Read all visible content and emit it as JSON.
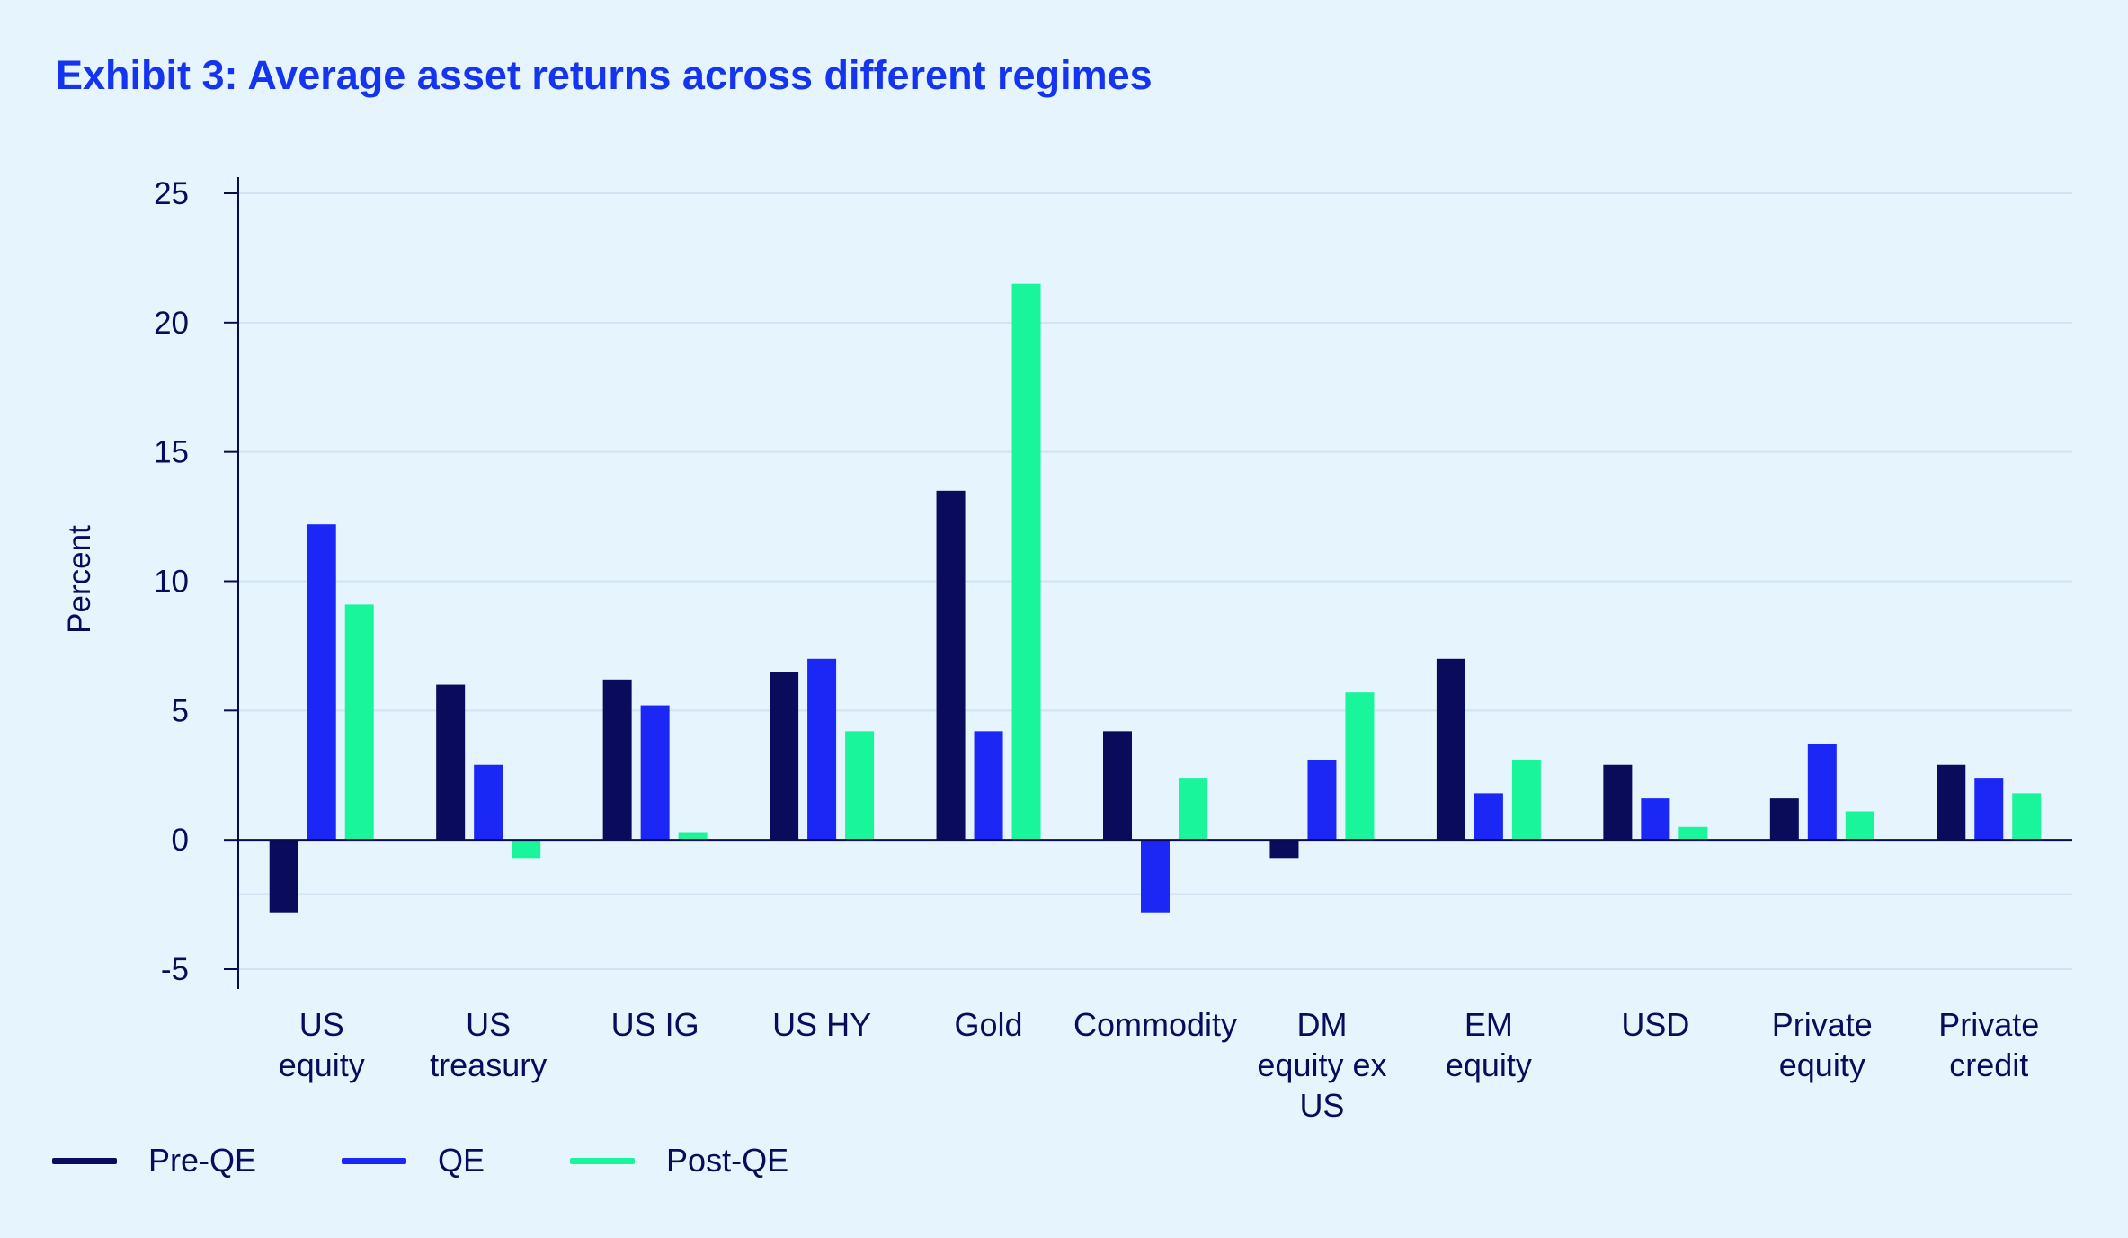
{
  "title": "Exhibit 3: Average asset returns across different regimes",
  "colors": {
    "background": "#e6f4fd",
    "title": "#1434f0",
    "text": "#0b0b5c",
    "grid": "#cfe3f2",
    "axis": "#0b0b4a"
  },
  "legend": [
    {
      "label": "Pre-QE",
      "color": "#0b0b5c"
    },
    {
      "label": "QE",
      "color": "#1a27f5"
    },
    {
      "label": "Post-QE",
      "color": "#19f59a"
    }
  ],
  "chart_data": {
    "type": "bar",
    "title": "Exhibit 3: Average asset returns across different regimes",
    "ylabel": "Percent",
    "xlabel": "",
    "ylim": [
      -5,
      25
    ],
    "yticks": [
      -5,
      0,
      5,
      10,
      15,
      20,
      25
    ],
    "grid": true,
    "legend_position": "bottom-left",
    "categories": [
      [
        "US",
        "equity"
      ],
      [
        "US",
        "treasury"
      ],
      [
        "US IG"
      ],
      [
        "US HY"
      ],
      [
        "Gold"
      ],
      [
        "Commodity"
      ],
      [
        "DM",
        "equity ex",
        "US"
      ],
      [
        "EM",
        "equity"
      ],
      [
        "USD"
      ],
      [
        "Private",
        "equity"
      ],
      [
        "Private",
        "credit"
      ]
    ],
    "series": [
      {
        "name": "Pre-QE",
        "color": "#0b0b5c",
        "values": [
          -2.8,
          6.0,
          6.2,
          6.5,
          13.5,
          4.2,
          -0.7,
          7.0,
          2.9,
          1.6,
          2.9
        ]
      },
      {
        "name": "QE",
        "color": "#1a27f5",
        "values": [
          12.2,
          2.9,
          5.2,
          7.0,
          4.2,
          -2.8,
          3.1,
          1.8,
          1.6,
          3.7,
          2.4
        ]
      },
      {
        "name": "Post-QE",
        "color": "#19f59a",
        "values": [
          9.1,
          -0.7,
          0.3,
          4.2,
          21.5,
          2.4,
          5.7,
          3.1,
          0.5,
          1.1,
          1.8
        ]
      }
    ]
  }
}
